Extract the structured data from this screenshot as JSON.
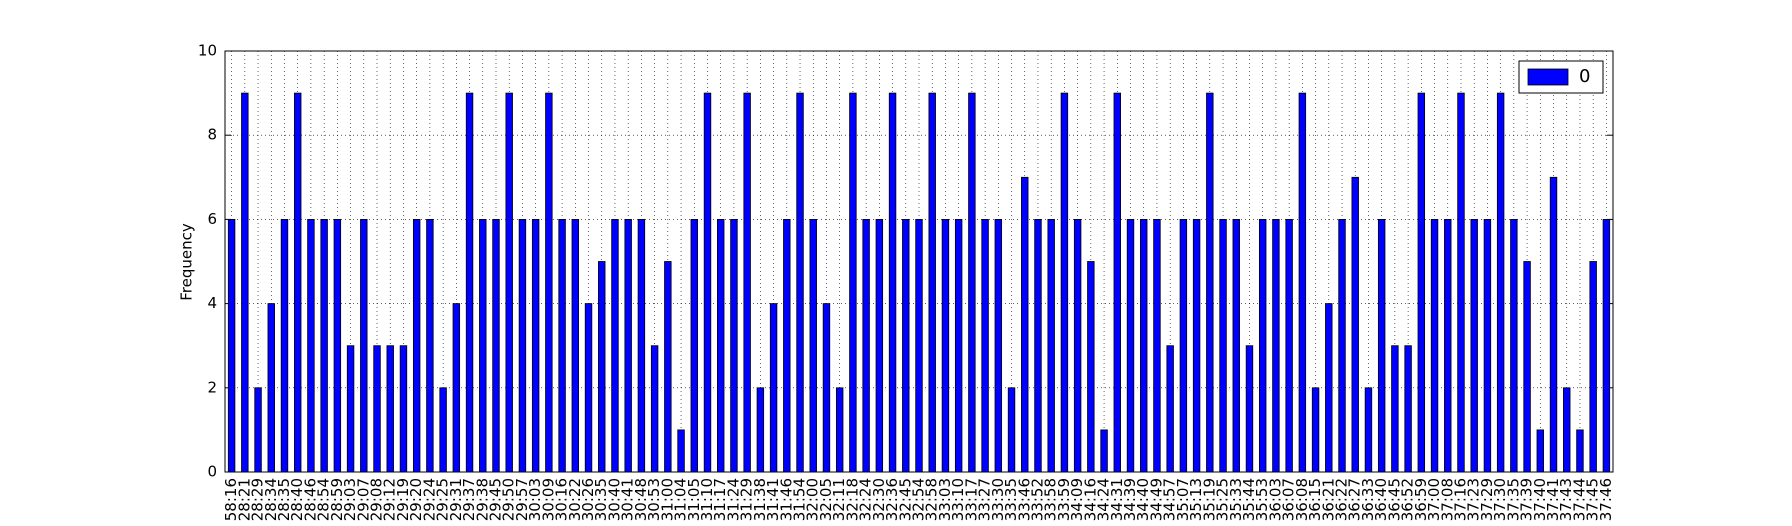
{
  "chart_data": {
    "type": "bar",
    "ylabel": "Frequency",
    "categories": [
      "58:16",
      "28:21",
      "28:29",
      "28:34",
      "28:35",
      "28:40",
      "28:46",
      "28:54",
      "28:59",
      "29:03",
      "29:07",
      "29:08",
      "29:12",
      "29:19",
      "29:20",
      "29:24",
      "29:25",
      "29:31",
      "29:37",
      "29:38",
      "29:45",
      "29:50",
      "29:57",
      "30:03",
      "30:09",
      "30:16",
      "30:22",
      "30:26",
      "30:35",
      "30:40",
      "30:41",
      "30:48",
      "30:53",
      "31:00",
      "31:04",
      "31:05",
      "31:10",
      "31:17",
      "31:24",
      "31:29",
      "31:38",
      "31:41",
      "31:46",
      "31:54",
      "32:00",
      "32:05",
      "32:11",
      "32:18",
      "32:24",
      "32:30",
      "32:36",
      "32:45",
      "32:54",
      "32:58",
      "33:03",
      "33:10",
      "33:17",
      "33:27",
      "33:30",
      "33:35",
      "33:46",
      "33:52",
      "33:58",
      "33:59",
      "34:09",
      "34:16",
      "34:24",
      "34:31",
      "34:39",
      "34:40",
      "34:49",
      "34:57",
      "35:07",
      "35:13",
      "35:19",
      "35:25",
      "35:33",
      "35:44",
      "35:53",
      "36:03",
      "36:07",
      "36:08",
      "36:15",
      "36:21",
      "36:22",
      "36:27",
      "36:33",
      "36:40",
      "36:45",
      "36:52",
      "36:59",
      "37:00",
      "37:08",
      "37:16",
      "37:23",
      "37:29",
      "37:30",
      "37:35",
      "37:39",
      "37:40",
      "37:41",
      "37:43",
      "37:44",
      "37:45",
      "37:46"
    ],
    "series": [
      {
        "name": "0",
        "color": "#0000ff",
        "values": [
          6,
          9,
          2,
          4,
          6,
          9,
          6,
          6,
          6,
          3,
          6,
          3,
          3,
          3,
          6,
          6,
          2,
          4,
          9,
          6,
          6,
          9,
          6,
          6,
          9,
          6,
          6,
          4,
          5,
          6,
          6,
          6,
          3,
          5,
          1,
          6,
          9,
          6,
          6,
          9,
          2,
          4,
          6,
          9,
          6,
          4,
          2,
          9,
          6,
          6,
          9,
          6,
          6,
          9,
          6,
          6,
          9,
          6,
          6,
          2,
          7,
          6,
          6,
          9,
          6,
          5,
          1,
          9,
          6,
          6,
          6,
          3,
          6,
          6,
          9,
          6,
          6,
          3,
          6,
          6,
          6,
          9,
          2,
          4,
          6,
          7,
          2,
          6,
          3,
          3,
          9,
          6,
          6,
          9,
          6,
          6,
          9,
          6,
          5,
          1,
          7,
          2,
          1,
          5,
          6
        ]
      }
    ],
    "ylim": [
      0,
      10
    ],
    "yticks": [
      0,
      2,
      4,
      6,
      8,
      10
    ],
    "grid": true,
    "legend": "upper right"
  }
}
